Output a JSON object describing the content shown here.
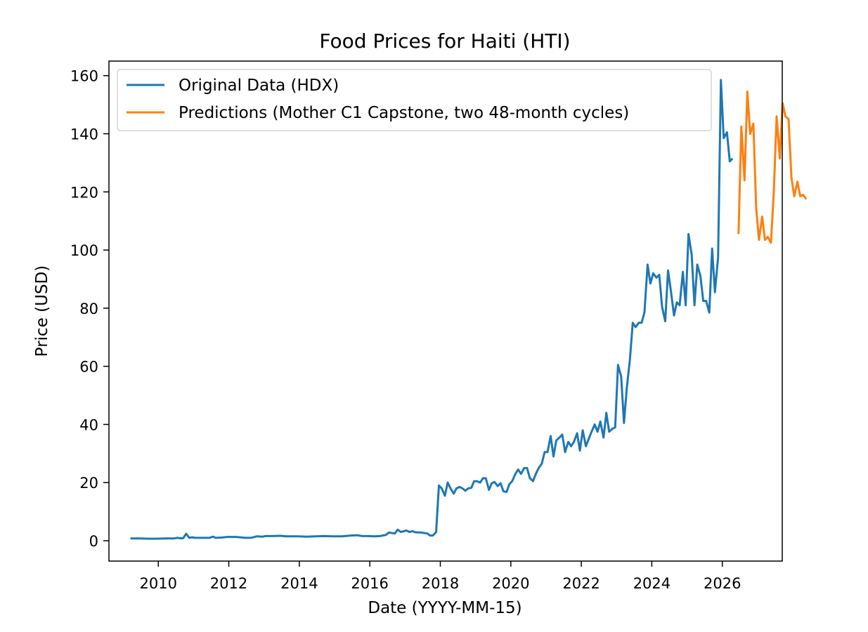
{
  "chart_data": {
    "type": "line",
    "title": "Food Prices for Haiti (HTI)",
    "xlabel": "Date (YYYY-MM-15)",
    "ylabel": "Price (USD)",
    "xlim": [
      2008.6,
      2027.7
    ],
    "ylim": [
      -7.0,
      165.0
    ],
    "xticks": [
      2010,
      2012,
      2014,
      2016,
      2018,
      2020,
      2022,
      2024,
      2026
    ],
    "yticks": [
      0,
      20,
      40,
      60,
      80,
      100,
      120,
      140,
      160
    ],
    "grid": false,
    "legend_position": "top-left",
    "series": [
      {
        "name": "Original Data (HDX)",
        "color": "#1f77b4",
        "points": [
          [
            2009.21,
            0.8
          ],
          [
            2009.46,
            0.8
          ],
          [
            2009.71,
            0.7
          ],
          [
            2009.96,
            0.7
          ],
          [
            2010.21,
            0.8
          ],
          [
            2010.46,
            0.8
          ],
          [
            2010.54,
            1.0
          ],
          [
            2010.63,
            0.8
          ],
          [
            2010.71,
            0.9
          ],
          [
            2010.79,
            2.4
          ],
          [
            2010.88,
            1.0
          ],
          [
            2010.96,
            1.2
          ],
          [
            2011.04,
            1.0
          ],
          [
            2011.21,
            1.0
          ],
          [
            2011.46,
            1.0
          ],
          [
            2011.54,
            1.4
          ],
          [
            2011.63,
            1.0
          ],
          [
            2011.79,
            1.1
          ],
          [
            2011.96,
            1.3
          ],
          [
            2012.21,
            1.3
          ],
          [
            2012.46,
            1.0
          ],
          [
            2012.63,
            1.0
          ],
          [
            2012.79,
            1.5
          ],
          [
            2012.96,
            1.4
          ],
          [
            2013.04,
            1.6
          ],
          [
            2013.21,
            1.6
          ],
          [
            2013.46,
            1.7
          ],
          [
            2013.63,
            1.5
          ],
          [
            2013.96,
            1.5
          ],
          [
            2014.21,
            1.4
          ],
          [
            2014.46,
            1.5
          ],
          [
            2014.71,
            1.6
          ],
          [
            2014.96,
            1.5
          ],
          [
            2015.21,
            1.5
          ],
          [
            2015.46,
            1.8
          ],
          [
            2015.63,
            1.9
          ],
          [
            2015.79,
            1.6
          ],
          [
            2015.96,
            1.6
          ],
          [
            2016.13,
            1.5
          ],
          [
            2016.29,
            1.6
          ],
          [
            2016.46,
            2.0
          ],
          [
            2016.54,
            2.8
          ],
          [
            2016.71,
            2.5
          ],
          [
            2016.79,
            3.8
          ],
          [
            2016.88,
            3.0
          ],
          [
            2017.04,
            3.5
          ],
          [
            2017.13,
            3.0
          ],
          [
            2017.21,
            3.3
          ],
          [
            2017.29,
            2.9
          ],
          [
            2017.46,
            2.8
          ],
          [
            2017.63,
            2.5
          ],
          [
            2017.71,
            1.8
          ],
          [
            2017.79,
            1.8
          ],
          [
            2017.88,
            3.0
          ],
          [
            2017.96,
            19.0
          ],
          [
            2018.04,
            18.0
          ],
          [
            2018.13,
            15.5
          ],
          [
            2018.21,
            20.0
          ],
          [
            2018.29,
            18.0
          ],
          [
            2018.38,
            16.2
          ],
          [
            2018.46,
            18.0
          ],
          [
            2018.54,
            18.5
          ],
          [
            2018.63,
            18.0
          ],
          [
            2018.71,
            17.2
          ],
          [
            2018.79,
            18.0
          ],
          [
            2018.88,
            18.2
          ],
          [
            2018.96,
            20.5
          ],
          [
            2019.04,
            20.5
          ],
          [
            2019.13,
            20.0
          ],
          [
            2019.21,
            21.5
          ],
          [
            2019.29,
            21.5
          ],
          [
            2019.38,
            17.5
          ],
          [
            2019.46,
            19.8
          ],
          [
            2019.54,
            20.2
          ],
          [
            2019.63,
            18.8
          ],
          [
            2019.71,
            19.8
          ],
          [
            2019.79,
            17.0
          ],
          [
            2019.88,
            16.8
          ],
          [
            2019.96,
            19.5
          ],
          [
            2020.04,
            20.5
          ],
          [
            2020.13,
            23.0
          ],
          [
            2020.21,
            24.5
          ],
          [
            2020.29,
            23.0
          ],
          [
            2020.38,
            25.0
          ],
          [
            2020.46,
            25.0
          ],
          [
            2020.54,
            21.5
          ],
          [
            2020.63,
            20.5
          ],
          [
            2020.71,
            23.0
          ],
          [
            2020.79,
            25.0
          ],
          [
            2020.88,
            26.5
          ],
          [
            2020.96,
            30.5
          ],
          [
            2021.04,
            30.5
          ],
          [
            2021.13,
            36.0
          ],
          [
            2021.21,
            29.0
          ],
          [
            2021.29,
            34.5
          ],
          [
            2021.38,
            35.5
          ],
          [
            2021.46,
            36.5
          ],
          [
            2021.54,
            30.5
          ],
          [
            2021.63,
            34.0
          ],
          [
            2021.71,
            32.5
          ],
          [
            2021.79,
            34.0
          ],
          [
            2021.88,
            37.0
          ],
          [
            2021.96,
            31.0
          ],
          [
            2022.04,
            38.0
          ],
          [
            2022.13,
            32.5
          ],
          [
            2022.21,
            35.0
          ],
          [
            2022.29,
            37.5
          ],
          [
            2022.38,
            40.0
          ],
          [
            2022.46,
            37.5
          ],
          [
            2022.54,
            41.0
          ],
          [
            2022.63,
            35.5
          ],
          [
            2022.71,
            44.0
          ],
          [
            2022.79,
            37.5
          ],
          [
            2022.88,
            38.5
          ],
          [
            2022.96,
            39.0
          ],
          [
            2023.04,
            60.5
          ],
          [
            2023.13,
            56.5
          ],
          [
            2023.21,
            40.5
          ],
          [
            2023.29,
            52.5
          ],
          [
            2023.38,
            62.5
          ],
          [
            2023.46,
            75.0
          ],
          [
            2023.54,
            73.5
          ],
          [
            2023.63,
            75.0
          ],
          [
            2023.71,
            75.0
          ],
          [
            2023.79,
            78.5
          ],
          [
            2023.88,
            95.0
          ],
          [
            2023.96,
            88.5
          ],
          [
            2024.04,
            92.0
          ],
          [
            2024.13,
            90.5
          ],
          [
            2024.21,
            91.5
          ],
          [
            2024.29,
            80.5
          ],
          [
            2024.38,
            75.5
          ],
          [
            2024.46,
            93.0
          ],
          [
            2024.54,
            86.0
          ],
          [
            2024.63,
            77.5
          ],
          [
            2024.71,
            82.0
          ],
          [
            2024.79,
            81.0
          ],
          [
            2024.88,
            92.5
          ],
          [
            2024.96,
            81.0
          ],
          [
            2025.04,
            105.5
          ],
          [
            2025.13,
            98.5
          ],
          [
            2025.21,
            81.0
          ],
          [
            2025.29,
            95.0
          ],
          [
            2025.38,
            91.0
          ],
          [
            2025.46,
            82.5
          ],
          [
            2025.54,
            82.5
          ],
          [
            2025.63,
            78.5
          ],
          [
            2025.71,
            100.5
          ],
          [
            2025.79,
            85.5
          ],
          [
            2025.88,
            97.5
          ],
          [
            2025.96,
            158.5
          ],
          [
            2026.04,
            138.5
          ],
          [
            2026.13,
            140.5
          ],
          [
            2026.21,
            130.5
          ],
          [
            2026.29,
            131.5
          ]
        ]
      },
      {
        "name": "Predictions (Mother C1 Capstone, two 48-month cycles)",
        "color": "#ff7f0e",
        "points": [
          [
            2026.46,
            105.5
          ],
          [
            2026.54,
            142.5
          ],
          [
            2026.63,
            124.0
          ],
          [
            2026.71,
            154.5
          ],
          [
            2026.79,
            140.0
          ],
          [
            2026.88,
            143.5
          ],
          [
            2026.96,
            114.5
          ],
          [
            2027.04,
            103.5
          ],
          [
            2027.13,
            111.5
          ],
          [
            2027.21,
            103.5
          ],
          [
            2027.29,
            104.5
          ],
          [
            2027.38,
            102.5
          ],
          [
            2027.46,
            120.0
          ],
          [
            2027.54,
            146.0
          ],
          [
            2027.63,
            131.5
          ],
          [
            2027.71,
            150.5
          ],
          [
            2027.79,
            146.0
          ],
          [
            2027.88,
            145.0
          ],
          [
            2027.96,
            125.0
          ],
          [
            2028.04,
            118.5
          ],
          [
            2028.13,
            123.5
          ],
          [
            2028.21,
            118.5
          ],
          [
            2028.29,
            119.0
          ],
          [
            2028.38,
            117.5
          ]
        ]
      }
    ]
  }
}
